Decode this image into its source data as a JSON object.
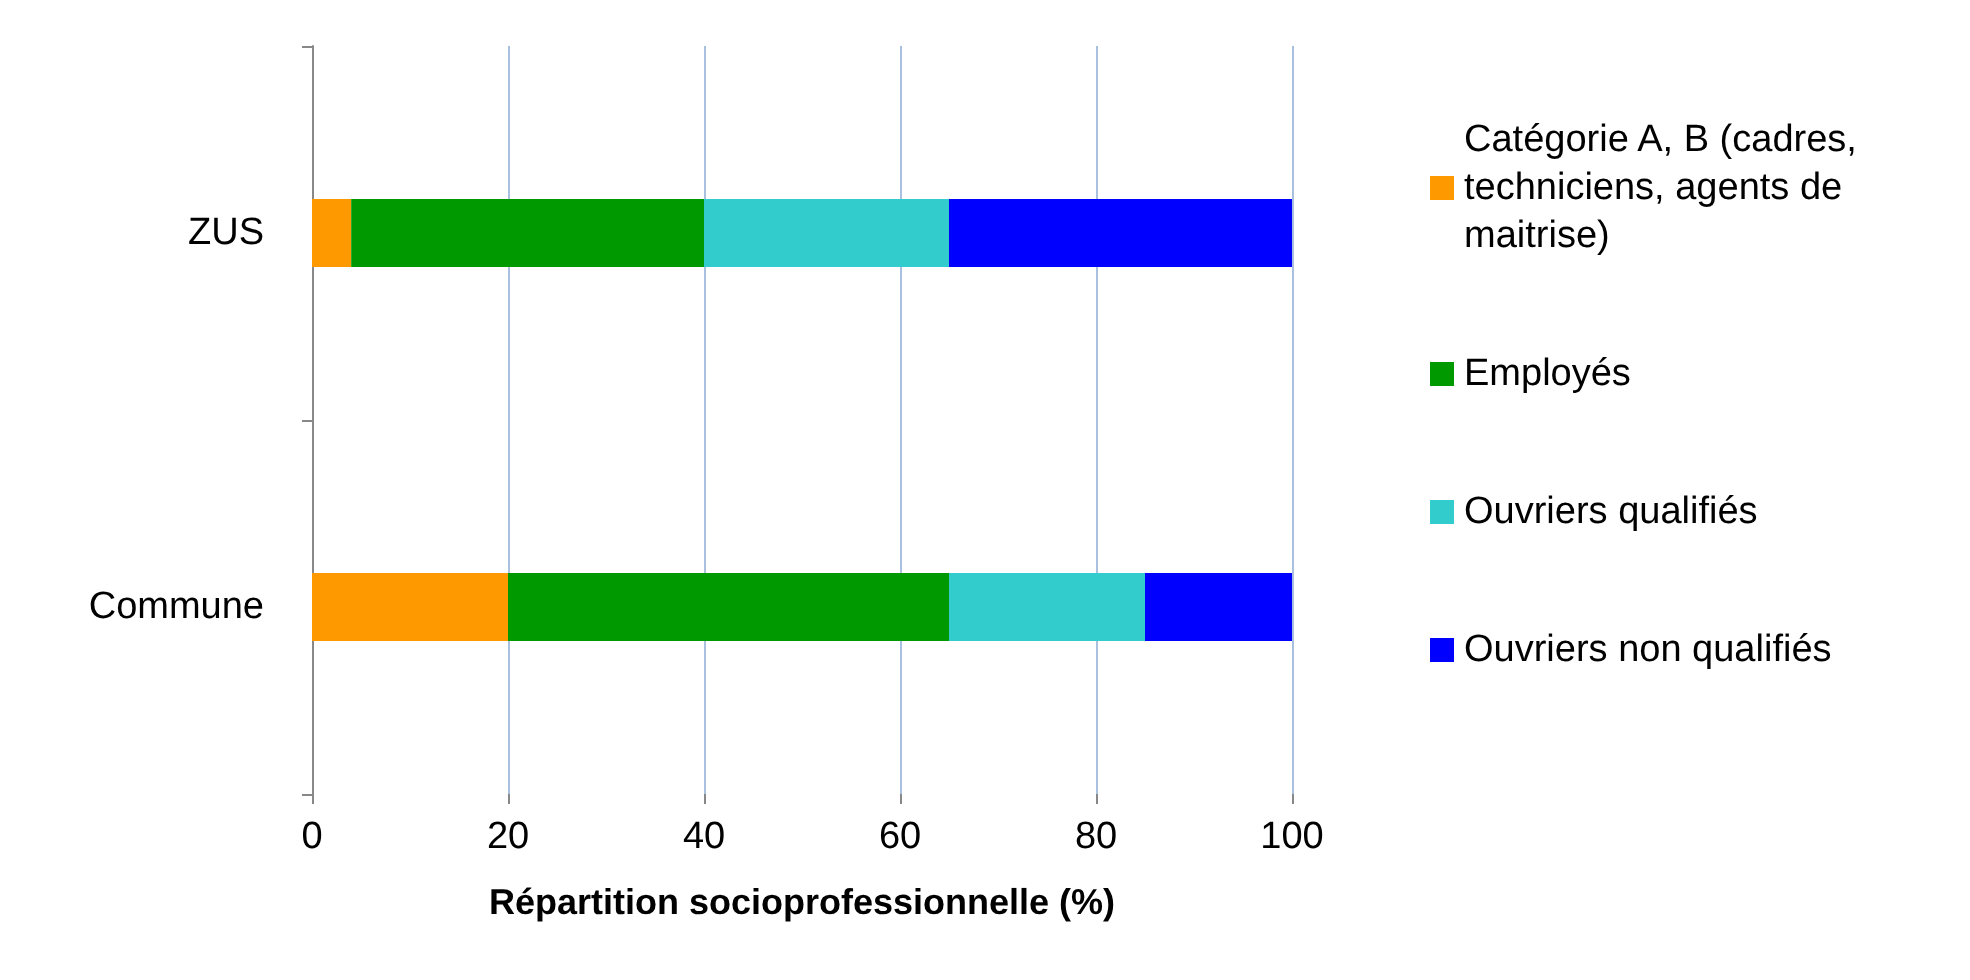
{
  "chart_data": {
    "type": "bar",
    "orientation": "horizontal",
    "stacked": true,
    "xlabel": "Répartition socioprofessionnelle (%)",
    "categories": [
      "ZUS",
      "Commune"
    ],
    "series": [
      {
        "name": "Catégorie A, B (cadres, techniciens, agents de maitrise)",
        "color": "#ff9900",
        "values": [
          4,
          20
        ]
      },
      {
        "name": "Employés",
        "color": "#009900",
        "values": [
          36,
          45
        ]
      },
      {
        "name": "Ouvriers qualifiés",
        "color": "#33cccc",
        "values": [
          25,
          20
        ]
      },
      {
        "name": "Ouvriers non qualifiés",
        "color": "#0000ff",
        "values": [
          35,
          15
        ]
      }
    ],
    "xlim": [
      0,
      100
    ],
    "xticks": [
      0,
      20,
      40,
      60,
      80,
      100
    ],
    "grid": "x",
    "legend": "right"
  }
}
